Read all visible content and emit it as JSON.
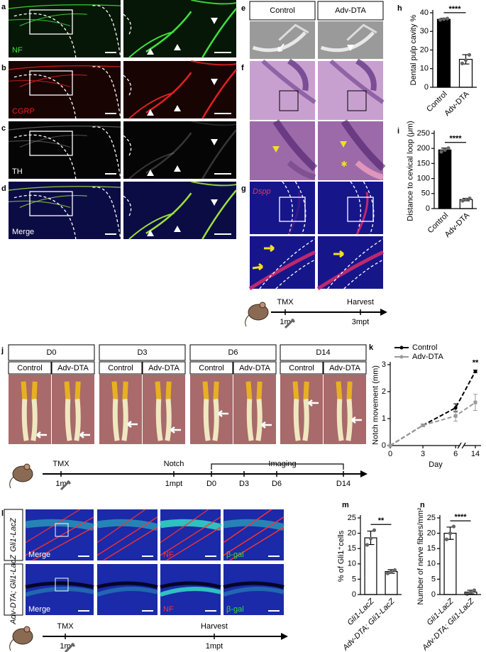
{
  "figure": {
    "panel_labels": [
      "a",
      "b",
      "c",
      "d",
      "e",
      "f",
      "g",
      "h",
      "i",
      "j",
      "k",
      "l",
      "m",
      "n"
    ],
    "ad": {
      "labels": [
        "NF",
        "CGRP",
        "TH",
        "Merge"
      ]
    },
    "e": {
      "headers": [
        "Control",
        "Adv-DTA"
      ]
    },
    "g": {
      "label": "Dspp"
    },
    "timeline_g": {
      "labels": [
        "TMX",
        "Harvest"
      ],
      "ticks": [
        "1m",
        "3mpt"
      ]
    },
    "j": {
      "days": [
        "D0",
        "D3",
        "D6",
        "D14"
      ],
      "groups": [
        "Control",
        "Adv-DTA"
      ]
    },
    "timeline_j": {
      "labels": [
        "TMX",
        "Notch",
        "Imaging"
      ],
      "ticks": [
        "1m",
        "1mpt",
        "D0",
        "D3",
        "D6",
        "D14"
      ]
    },
    "l": {
      "rows": [
        "Gli1-LacZ",
        "Adv-DTA; Gli1-LacZ"
      ],
      "labels": [
        "Merge",
        "NF",
        "β-gal"
      ]
    },
    "timeline_l": {
      "labels": [
        "TMX",
        "Harvest"
      ],
      "ticks": [
        "1m",
        "1mpt"
      ]
    }
  },
  "chart_data": [
    {
      "type": "bar",
      "ylabel": "Dental pulp cavity %",
      "categories": [
        "Control",
        "Adv-DTA"
      ],
      "values": [
        36.5,
        15
      ],
      "errors": [
        0.5,
        2.5
      ],
      "points": [
        [
          36.2,
          36.6,
          36.9
        ],
        [
          12.8,
          14.6,
          17.4
        ]
      ],
      "colors": [
        "#000000",
        "#ffffff"
      ],
      "annotation": "****",
      "ylim": [
        0,
        40
      ],
      "yticks": [
        0,
        10,
        20,
        30,
        40
      ]
    },
    {
      "type": "bar",
      "ylabel": "Distance to cevical loop (μm)",
      "categories": [
        "Control",
        "Adv-DTA"
      ],
      "values": [
        195,
        30
      ],
      "errors": [
        6,
        4
      ],
      "points": [
        [
          189,
          195,
          201
        ],
        [
          26,
          30,
          34
        ]
      ],
      "colors": [
        "#000000",
        "#ffffff"
      ],
      "annotation": "****",
      "ylim": [
        0,
        250
      ],
      "yticks": [
        0,
        50,
        100,
        150,
        200,
        250
      ]
    },
    {
      "type": "line",
      "ylabel": "Notch movement (mm)",
      "xlabel": "Day",
      "x": [
        0,
        3,
        6,
        14
      ],
      "xlim": [
        0,
        14
      ],
      "xticks": [
        0,
        3,
        6,
        14
      ],
      "ylim": [
        0,
        3
      ],
      "yticks": [
        0,
        1,
        2,
        3
      ],
      "annotation": "**",
      "series": [
        {
          "name": "Control",
          "color": "#000000",
          "values": [
            0,
            0.75,
            1.4,
            2.75
          ],
          "errors": [
            0,
            0.05,
            0.15,
            0.05
          ]
        },
        {
          "name": "Adv-DTA",
          "color": "#999999",
          "values": [
            0,
            0.75,
            1.1,
            1.6
          ],
          "errors": [
            0,
            0.05,
            0.2,
            0.3
          ]
        }
      ]
    },
    {
      "type": "bar",
      "ylabel": "% of Gli1⁺cells",
      "categories": [
        "Gli1-LacZ",
        "Adv-DTA; Gli1-LacZ"
      ],
      "values": [
        18.5,
        7.5
      ],
      "errors": [
        2.2,
        0.6
      ],
      "points": [
        [
          16.2,
          18.3,
          21
        ],
        [
          6.9,
          7.4,
          8
        ]
      ],
      "colors": [
        "#ffffff",
        "#ffffff"
      ],
      "annotation": "**",
      "ylim": [
        0,
        25
      ],
      "yticks": [
        0,
        5,
        10,
        15,
        20,
        25
      ]
    },
    {
      "type": "bar",
      "ylabel": "Number of nerve fibers/mm²",
      "categories": [
        "Gli1-LacZ",
        "Adv-DTA; Gli1-LacZ"
      ],
      "values": [
        20,
        0.8
      ],
      "errors": [
        2,
        0.6
      ],
      "points": [
        [
          18,
          20,
          22.2
        ],
        [
          0.2,
          0.8,
          1.4
        ]
      ],
      "colors": [
        "#ffffff",
        "#ffffff"
      ],
      "annotation": "****",
      "ylim": [
        0,
        25
      ],
      "yticks": [
        0,
        5,
        10,
        15,
        20,
        25
      ]
    }
  ]
}
